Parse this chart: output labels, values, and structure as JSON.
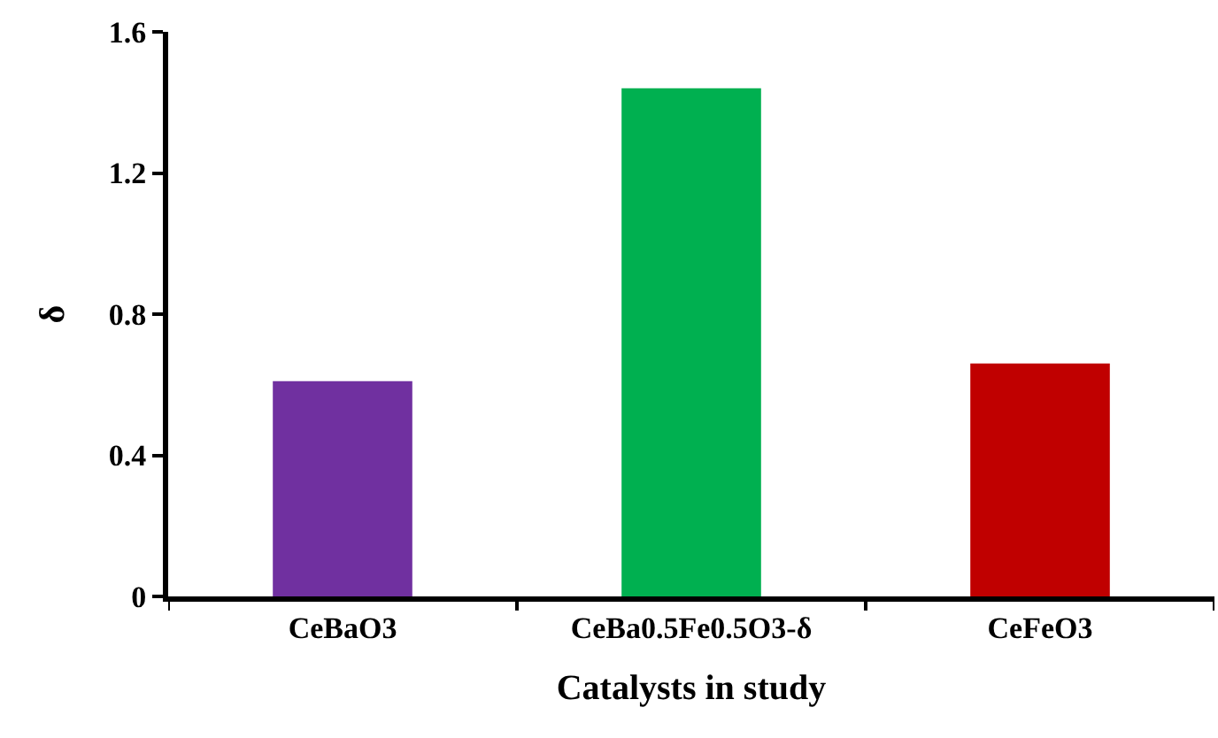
{
  "chart_data": {
    "type": "bar",
    "xlabel": "Catalysts in study",
    "ylabel": "δ",
    "categories": [
      "CeBaO3",
      "CeBa0.5Fe0.5O3-δ",
      "CeFeO3"
    ],
    "values": [
      0.61,
      1.44,
      0.66
    ],
    "colors": [
      "#7030a0",
      "#00b050",
      "#c00000"
    ],
    "ylim": [
      0,
      1.6
    ],
    "yticks": [
      0,
      0.4,
      0.8,
      1.2,
      1.6
    ]
  }
}
